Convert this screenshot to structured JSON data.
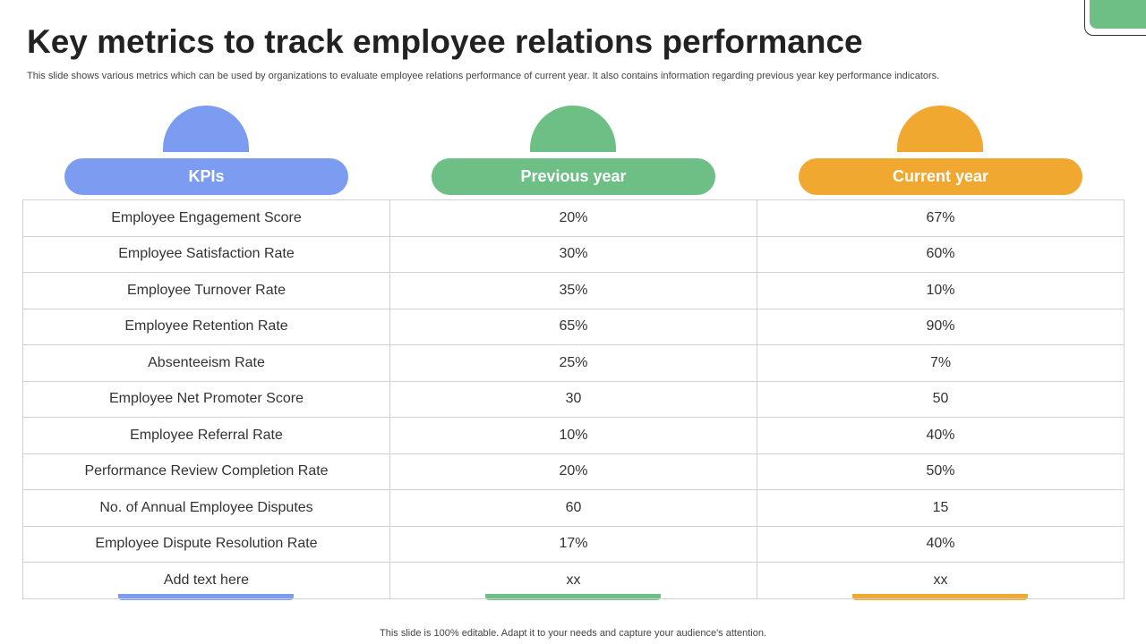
{
  "header": {
    "title": "Key metrics to track employee relations performance",
    "subtitle": "This slide shows various metrics which can be used by organizations to evaluate employee relations performance of current year. It also contains information regarding previous year key performance indicators."
  },
  "table": {
    "columns": [
      "KPIs",
      "Previous year",
      "Current year"
    ],
    "rows": [
      [
        "Employee Engagement Score",
        "20%",
        "67%"
      ],
      [
        "Employee Satisfaction Rate",
        "30%",
        "60%"
      ],
      [
        "Employee Turnover Rate",
        "35%",
        "10%"
      ],
      [
        "Employee Retention Rate",
        "65%",
        "90%"
      ],
      [
        "Absenteeism Rate",
        "25%",
        "7%"
      ],
      [
        "Employee Net Promoter Score",
        "30",
        "50"
      ],
      [
        "Employee Referral Rate",
        "10%",
        "40%"
      ],
      [
        "Performance Review Completion Rate",
        "20%",
        "50%"
      ],
      [
        "No. of Annual Employee Disputes",
        "60",
        "15"
      ],
      [
        "Employee Dispute Resolution Rate",
        "17%",
        "40%"
      ],
      [
        "Add text here",
        "xx",
        "xx"
      ]
    ]
  },
  "footer": "This slide is 100% editable. Adapt it to your needs and capture your audience's attention."
}
